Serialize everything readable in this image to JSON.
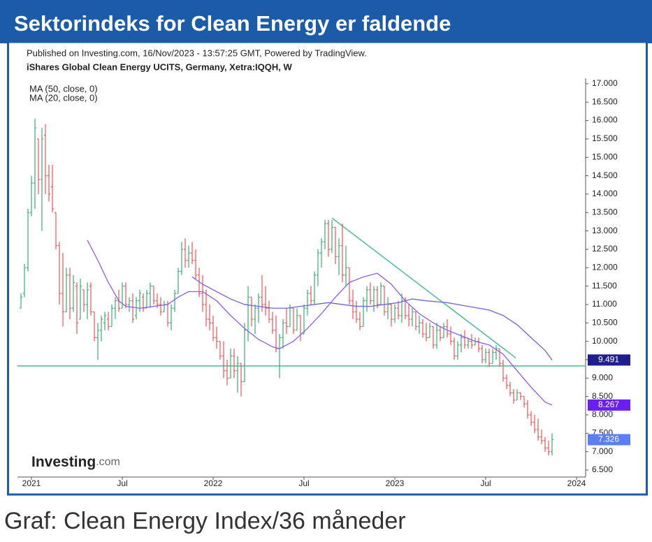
{
  "banner_title": "Sektorindeks for Clean Energy er faldende",
  "caption": "Graf: Clean Energy Index/36 måneder",
  "chart_data": {
    "type": "ohlc",
    "published": "Published on Investing.com, 16/Nov/2023 - 13:57:25 GMT, Powered by TradingView.",
    "subtitle": "iShares Global Clean Energy UCITS, Germany, Xetra:IQQH, W",
    "logo": "Investing",
    "logo_suffix": ".com",
    "up_color": "#3aae74",
    "down_color": "#ee5358",
    "last_label": "7.326",
    "last_label_color": "#5b7ff0",
    "xlim": [
      -4,
      158.6
    ],
    "xticks": [
      {
        "value": 0,
        "label": "2021"
      },
      {
        "value": 26,
        "label": "Jul"
      },
      {
        "value": 52,
        "label": "2022"
      },
      {
        "value": 78,
        "label": "Jul"
      },
      {
        "value": 104,
        "label": "2023"
      },
      {
        "value": 130,
        "label": "Jul"
      },
      {
        "value": 156,
        "label": "2024"
      }
    ],
    "ylim": [
      6.31,
      17.15
    ],
    "yticks": [
      {
        "value": 6.5,
        "label": "6.500"
      },
      {
        "value": 7,
        "label": "7.000"
      },
      {
        "value": 7.5,
        "label": "7.500"
      },
      {
        "value": 8,
        "label": "8.000"
      },
      {
        "value": 8.5,
        "label": "8.500"
      },
      {
        "value": 9,
        "label": "9.000"
      },
      {
        "value": 9.5,
        "label": "9.500"
      },
      {
        "value": 10,
        "label": "10.000"
      },
      {
        "value": 10.5,
        "label": "10.500"
      },
      {
        "value": 11,
        "label": "11.000"
      },
      {
        "value": 11.5,
        "label": "11.500"
      },
      {
        "value": 12,
        "label": "12.000"
      },
      {
        "value": 12.5,
        "label": "12.500"
      },
      {
        "value": 13,
        "label": "13.000"
      },
      {
        "value": 13.5,
        "label": "13.500"
      },
      {
        "value": 14,
        "label": "14.000"
      },
      {
        "value": 14.5,
        "label": "14.500"
      },
      {
        "value": 15,
        "label": "15.000"
      },
      {
        "value": 15.5,
        "label": "15.500"
      },
      {
        "value": 16,
        "label": "16.000"
      },
      {
        "value": 16.5,
        "label": "16.500"
      },
      {
        "value": 17,
        "label": "17.000"
      }
    ],
    "x": [
      -3,
      -2,
      -1,
      0,
      1,
      2,
      3,
      4,
      5,
      6,
      7,
      8,
      9,
      10,
      11,
      12,
      13,
      14,
      15,
      16,
      17,
      18,
      19,
      20,
      21,
      22,
      23,
      24,
      25,
      26,
      27,
      28,
      29,
      30,
      31,
      32,
      33,
      34,
      35,
      36,
      37,
      38,
      39,
      40,
      41,
      42,
      43,
      44,
      45,
      46,
      47,
      48,
      49,
      50,
      51,
      52,
      53,
      54,
      55,
      56,
      57,
      58,
      59,
      60,
      61,
      62,
      63,
      64,
      65,
      66,
      67,
      68,
      69,
      70,
      71,
      72,
      73,
      74,
      75,
      76,
      77,
      78,
      79,
      80,
      81,
      82,
      83,
      84,
      85,
      86,
      87,
      88,
      89,
      90,
      91,
      92,
      93,
      94,
      95,
      96,
      97,
      98,
      99,
      100,
      101,
      102,
      103,
      104,
      105,
      106,
      107,
      108,
      109,
      110,
      111,
      112,
      113,
      114,
      115,
      116,
      117,
      118,
      119,
      120,
      121,
      122,
      123,
      124,
      125,
      126,
      127,
      128,
      129,
      130,
      131,
      132,
      133,
      134,
      135,
      136,
      137,
      138,
      139,
      140,
      141,
      142,
      143,
      144,
      145,
      146,
      147,
      148,
      149
    ],
    "ohlc": [
      [
        10.9,
        11.3,
        10.9,
        11.2
      ],
      [
        11.3,
        12.1,
        11.2,
        12.0
      ],
      [
        12.0,
        13.6,
        11.9,
        13.5
      ],
      [
        13.5,
        14.5,
        13.4,
        14.3
      ],
      [
        14.3,
        16.05,
        13.6,
        15.8
      ],
      [
        15.5,
        15.5,
        14.0,
        14.4
      ],
      [
        14.4,
        15.8,
        13.0,
        15.5
      ],
      [
        15.6,
        15.9,
        14.0,
        14.5
      ],
      [
        14.5,
        14.8,
        13.8,
        14.0
      ],
      [
        14.2,
        14.8,
        13.5,
        13.6
      ],
      [
        13.5,
        13.5,
        12.5,
        12.6
      ],
      [
        12.6,
        12.7,
        11.0,
        11.3
      ],
      [
        11.3,
        12.4,
        10.4,
        10.8
      ],
      [
        10.8,
        12.0,
        10.8,
        11.8
      ],
      [
        11.8,
        12.0,
        10.6,
        10.9
      ],
      [
        10.9,
        11.8,
        10.8,
        11.6
      ],
      [
        11.5,
        11.6,
        10.2,
        10.5
      ],
      [
        10.6,
        11.7,
        10.6,
        11.5
      ],
      [
        11.4,
        11.4,
        10.8,
        11.0
      ],
      [
        11.0,
        11.6,
        10.6,
        11.4
      ],
      [
        11.5,
        11.6,
        10.7,
        10.8
      ],
      [
        10.8,
        10.8,
        10.0,
        10.1
      ],
      [
        10.1,
        10.5,
        9.5,
        10.3
      ],
      [
        10.3,
        10.7,
        10.0,
        10.6
      ],
      [
        10.5,
        10.8,
        10.3,
        10.7
      ],
      [
        10.6,
        10.8,
        10.3,
        10.4
      ],
      [
        10.4,
        11.0,
        10.4,
        10.9
      ],
      [
        10.9,
        11.2,
        10.6,
        11.1
      ],
      [
        11.1,
        11.4,
        10.8,
        10.9
      ],
      [
        10.9,
        11.6,
        10.9,
        11.5
      ],
      [
        11.5,
        11.6,
        10.9,
        11.0
      ],
      [
        11.0,
        11.2,
        10.8,
        11.1
      ],
      [
        11.1,
        11.3,
        10.5,
        10.6
      ],
      [
        10.7,
        11.2,
        10.6,
        11.1
      ],
      [
        11.1,
        11.4,
        10.8,
        11.3
      ],
      [
        11.2,
        11.3,
        10.8,
        10.9
      ],
      [
        10.9,
        11.4,
        10.9,
        11.3
      ],
      [
        11.3,
        11.6,
        10.9,
        11.5
      ],
      [
        11.5,
        11.5,
        11.0,
        11.1
      ],
      [
        11.1,
        11.3,
        10.9,
        11.0
      ],
      [
        11.0,
        11.2,
        10.7,
        10.8
      ],
      [
        10.8,
        11.1,
        10.8,
        11.0
      ],
      [
        11.0,
        11.1,
        10.4,
        10.5
      ],
      [
        10.5,
        11.0,
        10.3,
        10.9
      ],
      [
        10.9,
        11.4,
        10.8,
        11.3
      ],
      [
        11.3,
        12.0,
        11.3,
        11.9
      ],
      [
        11.9,
        12.7,
        11.8,
        12.5
      ],
      [
        12.5,
        12.8,
        12.0,
        12.2
      ],
      [
        12.2,
        12.6,
        12.0,
        12.4
      ],
      [
        12.4,
        12.7,
        12.1,
        12.2
      ],
      [
        12.2,
        12.5,
        11.7,
        11.8
      ],
      [
        11.8,
        12.0,
        11.2,
        11.3
      ],
      [
        11.3,
        11.8,
        10.8,
        11.0
      ],
      [
        11.0,
        11.4,
        10.4,
        10.6
      ],
      [
        10.6,
        11.0,
        10.3,
        10.5
      ],
      [
        10.5,
        10.7,
        10.0,
        10.1
      ],
      [
        10.1,
        10.4,
        9.8,
        10.0
      ],
      [
        10.0,
        10.0,
        9.5,
        9.6
      ],
      [
        9.6,
        10.0,
        9.0,
        9.2
      ],
      [
        9.2,
        9.5,
        8.8,
        9.0
      ],
      [
        9.0,
        9.8,
        9.0,
        9.6
      ],
      [
        9.6,
        9.8,
        9.0,
        9.2
      ],
      [
        9.2,
        9.6,
        8.6,
        9.4
      ],
      [
        9.4,
        9.4,
        8.5,
        8.9
      ],
      [
        8.9,
        10.5,
        8.9,
        10.3
      ],
      [
        10.3,
        11.5,
        10.0,
        11.2
      ],
      [
        11.2,
        11.2,
        10.4,
        10.6
      ],
      [
        10.6,
        11.0,
        10.2,
        10.9
      ],
      [
        10.9,
        11.3,
        10.5,
        11.2
      ],
      [
        11.2,
        11.8,
        10.8,
        11.0
      ],
      [
        11.0,
        11.5,
        10.7,
        10.9
      ],
      [
        10.9,
        11.1,
        10.5,
        10.6
      ],
      [
        10.6,
        10.8,
        10.2,
        10.3
      ],
      [
        10.3,
        10.7,
        9.7,
        9.8
      ],
      [
        9.8,
        10.2,
        9.0,
        10.1
      ],
      [
        10.1,
        10.6,
        9.8,
        10.5
      ],
      [
        10.5,
        10.9,
        10.2,
        10.4
      ],
      [
        10.4,
        11.0,
        10.4,
        10.9
      ],
      [
        10.9,
        10.9,
        10.2,
        10.3
      ],
      [
        10.3,
        10.9,
        10.3,
        10.7
      ],
      [
        10.7,
        10.7,
        10.0,
        10.2
      ],
      [
        10.2,
        11.0,
        10.2,
        10.9
      ],
      [
        10.9,
        11.4,
        10.7,
        11.3
      ],
      [
        11.3,
        11.5,
        11.0,
        11.1
      ],
      [
        11.1,
        11.9,
        11.0,
        11.8
      ],
      [
        11.8,
        12.5,
        11.5,
        12.4
      ],
      [
        12.4,
        12.8,
        12.0,
        12.7
      ],
      [
        12.7,
        13.3,
        12.5,
        13.2
      ],
      [
        13.2,
        13.3,
        12.3,
        12.5
      ],
      [
        12.5,
        13.3,
        12.4,
        13.1
      ],
      [
        13.1,
        13.1,
        12.1,
        12.3
      ],
      [
        12.3,
        12.8,
        11.8,
        12.6
      ],
      [
        12.6,
        13.2,
        11.6,
        11.8
      ],
      [
        11.8,
        12.6,
        11.5,
        12.0
      ],
      [
        12.0,
        12.0,
        11.0,
        11.1
      ],
      [
        11.1,
        11.4,
        10.6,
        10.8
      ],
      [
        10.8,
        11.1,
        10.5,
        10.6
      ],
      [
        10.6,
        10.8,
        10.3,
        10.4
      ],
      [
        10.4,
        11.2,
        10.4,
        11.1
      ],
      [
        11.1,
        11.5,
        10.8,
        11.4
      ],
      [
        11.4,
        11.6,
        11.0,
        11.1
      ],
      [
        11.1,
        11.5,
        10.8,
        11.4
      ],
      [
        11.4,
        11.5,
        10.9,
        11.0
      ],
      [
        11.0,
        11.6,
        11.0,
        11.5
      ],
      [
        11.5,
        11.5,
        10.7,
        10.8
      ],
      [
        10.8,
        11.2,
        10.6,
        11.0
      ],
      [
        11.0,
        11.0,
        10.4,
        10.6
      ],
      [
        10.6,
        11.0,
        10.5,
        10.9
      ],
      [
        10.9,
        11.1,
        10.6,
        10.7
      ],
      [
        10.7,
        11.3,
        10.5,
        11.1
      ],
      [
        11.1,
        11.2,
        10.6,
        10.7
      ],
      [
        10.7,
        11.0,
        10.4,
        10.6
      ],
      [
        10.6,
        10.9,
        10.4,
        10.8
      ],
      [
        10.8,
        10.8,
        10.3,
        10.4
      ],
      [
        10.4,
        10.7,
        10.2,
        10.5
      ],
      [
        10.5,
        10.6,
        10.1,
        10.2
      ],
      [
        10.2,
        10.5,
        10.0,
        10.1
      ],
      [
        10.1,
        10.5,
        10.1,
        10.4
      ],
      [
        10.4,
        10.4,
        9.8,
        9.9
      ],
      [
        9.9,
        10.5,
        9.8,
        10.3
      ],
      [
        10.3,
        10.4,
        10.0,
        10.1
      ],
      [
        10.1,
        10.5,
        10.1,
        10.4
      ],
      [
        10.4,
        10.6,
        10.1,
        10.2
      ],
      [
        10.2,
        10.4,
        9.9,
        10.0
      ],
      [
        10.0,
        10.1,
        9.5,
        9.6
      ],
      [
        9.6,
        10.0,
        9.5,
        9.9
      ],
      [
        9.9,
        10.2,
        9.7,
        10.1
      ],
      [
        10.1,
        10.3,
        9.8,
        9.9
      ],
      [
        9.9,
        10.1,
        9.8,
        10.0
      ],
      [
        10.0,
        10.2,
        9.8,
        9.9
      ],
      [
        9.9,
        10.1,
        9.9,
        10.0
      ],
      [
        10.0,
        10.1,
        9.7,
        9.8
      ],
      [
        9.8,
        9.9,
        9.4,
        9.5
      ],
      [
        9.5,
        9.8,
        9.4,
        9.7
      ],
      [
        9.7,
        9.8,
        9.3,
        9.4
      ],
      [
        9.4,
        9.8,
        9.4,
        9.7
      ],
      [
        9.7,
        9.9,
        9.5,
        9.8
      ],
      [
        9.8,
        9.8,
        9.3,
        9.4
      ],
      [
        9.4,
        9.5,
        8.9,
        9.0
      ],
      [
        9.0,
        9.1,
        8.7,
        8.8
      ],
      [
        8.8,
        8.9,
        8.5,
        8.6
      ],
      [
        8.6,
        8.7,
        8.3,
        8.4
      ],
      [
        8.4,
        8.7,
        8.4,
        8.6
      ],
      [
        8.6,
        8.6,
        8.4,
        8.5
      ],
      [
        8.5,
        8.5,
        8.2,
        8.3
      ],
      [
        8.3,
        8.4,
        7.9,
        8.0
      ],
      [
        8.0,
        8.1,
        7.7,
        7.8
      ],
      [
        7.8,
        8.0,
        7.5,
        7.6
      ],
      [
        7.6,
        7.9,
        7.3,
        7.4
      ],
      [
        7.4,
        7.6,
        7.2,
        7.3
      ],
      [
        7.3,
        7.4,
        7.0,
        7.1
      ],
      [
        7.1,
        7.3,
        6.9,
        7.0
      ],
      [
        7.0,
        7.5,
        6.9,
        7.326
      ]
    ],
    "series": [
      {
        "name": "MA (50, close, 0)",
        "color": "#6f63d8",
        "end_label": "9.491",
        "end_label_color": "#1e1e8c",
        "x": [
          46,
          49,
          53,
          57,
          61,
          65,
          69,
          73,
          77,
          81,
          85,
          89,
          93,
          97,
          101,
          105,
          109,
          113,
          119,
          125,
          131,
          135,
          139,
          143,
          147,
          149
        ],
        "values": [
          11.75,
          11.55,
          11.35,
          11.15,
          11.0,
          10.95,
          10.9,
          10.9,
          10.95,
          11.0,
          11.05,
          11.0,
          10.95,
          10.95,
          11.0,
          11.05,
          11.15,
          11.1,
          11.05,
          10.95,
          10.85,
          10.7,
          10.45,
          10.1,
          9.75,
          9.491
        ]
      },
      {
        "name": "MA (20, close, 0)",
        "color": "#8a5cf0",
        "end_label": "8.267",
        "end_label_color": "#6a1ef0",
        "x": [
          16,
          19,
          22,
          25,
          27,
          31,
          35,
          39,
          42,
          45,
          49,
          53,
          57,
          61,
          65,
          69,
          71,
          75,
          79,
          83,
          87,
          91,
          95,
          99,
          103,
          107,
          111,
          115,
          119,
          123,
          127,
          131,
          135,
          139,
          143,
          147,
          149
        ],
        "values": [
          12.75,
          12.2,
          11.6,
          11.1,
          10.95,
          10.9,
          10.95,
          11.0,
          11.2,
          11.35,
          11.35,
          11.1,
          10.7,
          10.35,
          10.05,
          9.85,
          9.8,
          10.0,
          10.35,
          10.75,
          11.2,
          11.6,
          11.75,
          11.85,
          11.55,
          11.1,
          10.75,
          10.5,
          10.3,
          10.15,
          10.0,
          9.9,
          9.65,
          9.2,
          8.75,
          8.35,
          8.267
        ]
      }
    ],
    "trendline_color": "#55bf9c",
    "trendlines": [
      {
        "x": [
          -4,
          158.6
        ],
        "values": [
          9.33,
          9.33
        ]
      },
      {
        "x": [
          86,
          138.6
        ],
        "values": [
          13.35,
          9.55
        ]
      }
    ]
  }
}
